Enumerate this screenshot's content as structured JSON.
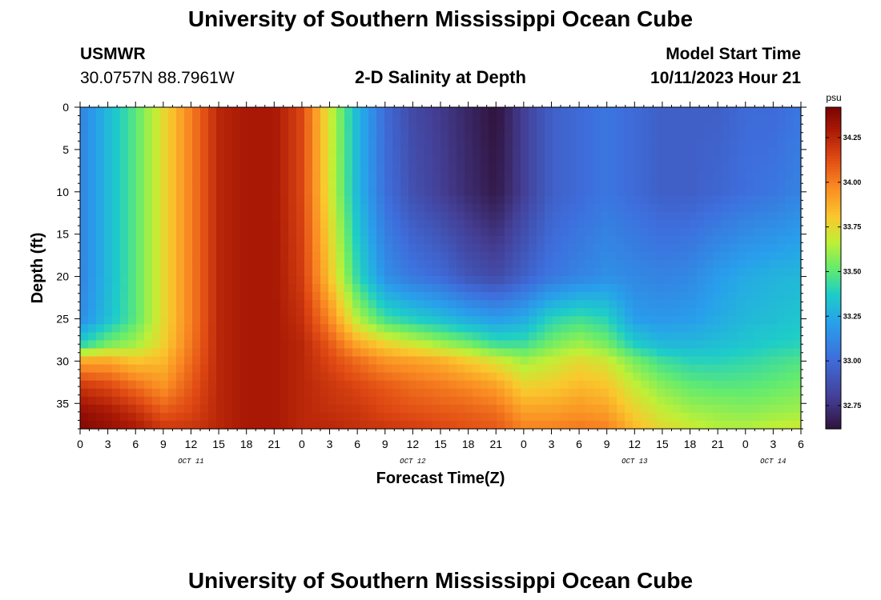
{
  "header": {
    "title": "University of Southern Mississippi Ocean Cube",
    "station": "USMWR",
    "coords": "30.0757N  88.7961W",
    "subtitle": "2-D Salinity at Depth",
    "model_label": "Model Start Time",
    "model_time": "10/11/2023 Hour 21"
  },
  "footer": {
    "title": "University of Southern Mississippi Ocean Cube"
  },
  "chart_data": {
    "type": "heatmap",
    "title": "2-D Salinity at Depth",
    "xlabel": "Forecast Time(Z)",
    "ylabel": "Depth (ft)",
    "x_range_hours": [
      0,
      78
    ],
    "ylim": [
      0,
      38
    ],
    "x_tick_labels": [
      "0",
      "3",
      "6",
      "9",
      "12",
      "15",
      "18",
      "21",
      "0",
      "3",
      "6",
      "9",
      "12",
      "15",
      "18",
      "21",
      "0",
      "3",
      "6",
      "9",
      "12",
      "15",
      "18",
      "21",
      "0",
      "3",
      "6"
    ],
    "x_day_labels": [
      {
        "label": "OCT 11",
        "hour": 12
      },
      {
        "label": "OCT 12",
        "hour": 36
      },
      {
        "label": "OCT 13",
        "hour": 60
      },
      {
        "label": "OCT 14",
        "hour": 75
      }
    ],
    "y_ticks": [
      0,
      5,
      10,
      15,
      20,
      25,
      30,
      35
    ],
    "y_tick_labels": [
      "0",
      "5",
      "10",
      "15",
      "20",
      "25",
      "30",
      "35"
    ],
    "colorbar": {
      "units": "psu",
      "min": 32.62,
      "max": 34.42,
      "ticks": [
        32.75,
        33.0,
        33.25,
        33.5,
        33.75,
        34.0,
        34.25
      ],
      "tick_labels": [
        "32.75",
        "33.00",
        "33.25",
        "33.50",
        "33.75",
        "34.00",
        "34.25"
      ]
    },
    "salinity_by_hour_and_depth": {
      "depths_ft": [
        0,
        10,
        20,
        25,
        28,
        30,
        33,
        36,
        38
      ],
      "columns": [
        {
          "hour": 0,
          "values": [
            33.1,
            33.1,
            33.1,
            33.13,
            33.4,
            33.9,
            34.2,
            34.35,
            34.4
          ]
        },
        {
          "hour": 3,
          "values": [
            33.3,
            33.3,
            33.3,
            33.32,
            33.55,
            33.9,
            34.15,
            34.3,
            34.35
          ]
        },
        {
          "hour": 6,
          "values": [
            33.5,
            33.5,
            33.5,
            33.5,
            33.62,
            33.82,
            34.05,
            34.22,
            34.3
          ]
        },
        {
          "hour": 9,
          "values": [
            33.75,
            33.75,
            33.75,
            33.75,
            33.78,
            33.85,
            33.95,
            34.1,
            34.2
          ]
        },
        {
          "hour": 12,
          "values": [
            34.0,
            34.0,
            34.0,
            34.0,
            34.02,
            34.05,
            34.1,
            34.15,
            34.2
          ]
        },
        {
          "hour": 15,
          "values": [
            34.25,
            34.25,
            34.25,
            34.25,
            34.25,
            34.25,
            34.25,
            34.25,
            34.25
          ]
        },
        {
          "hour": 18,
          "values": [
            34.3,
            34.3,
            34.3,
            34.3,
            34.3,
            34.3,
            34.3,
            34.3,
            34.3
          ]
        },
        {
          "hour": 21,
          "values": [
            34.3,
            34.3,
            34.3,
            34.3,
            34.3,
            34.3,
            34.3,
            34.3,
            34.3
          ]
        },
        {
          "hour": 24,
          "values": [
            34.15,
            34.15,
            34.18,
            34.22,
            34.25,
            34.25,
            34.25,
            34.25,
            34.25
          ]
        },
        {
          "hour": 27,
          "values": [
            33.7,
            33.72,
            33.82,
            33.98,
            34.1,
            34.15,
            34.2,
            34.22,
            34.25
          ]
        },
        {
          "hour": 30,
          "values": [
            33.3,
            33.3,
            33.42,
            33.65,
            33.9,
            34.05,
            34.15,
            34.2,
            34.22
          ]
        },
        {
          "hour": 33,
          "values": [
            33.0,
            33.02,
            33.15,
            33.45,
            33.78,
            33.95,
            34.1,
            34.15,
            34.2
          ]
        },
        {
          "hour": 36,
          "values": [
            32.85,
            32.88,
            33.05,
            33.38,
            33.7,
            33.92,
            34.05,
            34.12,
            34.18
          ]
        },
        {
          "hour": 39,
          "values": [
            32.78,
            32.8,
            33.0,
            33.32,
            33.62,
            33.88,
            34.02,
            34.1,
            34.15
          ]
        },
        {
          "hour": 42,
          "values": [
            32.7,
            32.72,
            32.9,
            33.25,
            33.55,
            33.8,
            33.98,
            34.08,
            34.12
          ]
        },
        {
          "hour": 45,
          "values": [
            32.62,
            32.65,
            32.85,
            33.2,
            33.45,
            33.72,
            33.92,
            34.05,
            34.1
          ]
        },
        {
          "hour": 48,
          "values": [
            32.8,
            32.8,
            32.95,
            33.25,
            33.45,
            33.62,
            33.78,
            33.92,
            34.0
          ]
        },
        {
          "hour": 51,
          "values": [
            32.95,
            32.95,
            33.05,
            33.4,
            33.55,
            33.68,
            33.8,
            33.92,
            34.0
          ]
        },
        {
          "hour": 54,
          "values": [
            33.0,
            33.0,
            33.1,
            33.45,
            33.62,
            33.75,
            33.85,
            33.95,
            34.02
          ]
        },
        {
          "hour": 57,
          "values": [
            33.05,
            33.05,
            33.15,
            33.4,
            33.55,
            33.7,
            33.82,
            33.92,
            34.0
          ]
        },
        {
          "hour": 60,
          "values": [
            33.0,
            33.0,
            33.12,
            33.2,
            33.38,
            33.55,
            33.68,
            33.78,
            33.85
          ]
        },
        {
          "hour": 63,
          "values": [
            32.95,
            32.95,
            33.1,
            33.18,
            33.3,
            33.45,
            33.58,
            33.68,
            33.75
          ]
        },
        {
          "hour": 66,
          "values": [
            32.95,
            32.95,
            33.12,
            33.2,
            33.3,
            33.4,
            33.52,
            33.62,
            33.7
          ]
        },
        {
          "hour": 69,
          "values": [
            32.95,
            32.98,
            33.2,
            33.25,
            33.32,
            33.4,
            33.5,
            33.6,
            33.65
          ]
        },
        {
          "hour": 72,
          "values": [
            33.0,
            33.02,
            33.25,
            33.3,
            33.35,
            33.42,
            33.5,
            33.58,
            33.65
          ]
        },
        {
          "hour": 75,
          "values": [
            33.0,
            33.05,
            33.28,
            33.32,
            33.38,
            33.45,
            33.52,
            33.6,
            33.68
          ]
        },
        {
          "hour": 78,
          "values": [
            33.05,
            33.1,
            33.3,
            33.35,
            33.4,
            33.48,
            33.55,
            33.62,
            33.7
          ]
        }
      ]
    }
  }
}
